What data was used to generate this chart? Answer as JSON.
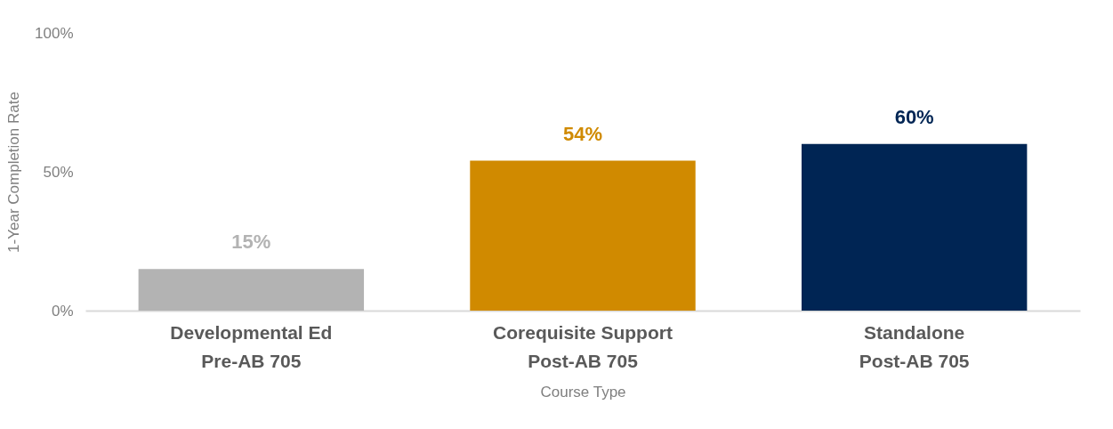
{
  "chart_data": {
    "type": "bar",
    "xlabel": "Course Type",
    "ylabel": "1-Year Completion Rate",
    "categories": [
      "Developmental Ed\nPre-AB 705",
      "Corequisite Support\nPost-AB 705",
      "Standalone\nPost-AB 705"
    ],
    "values": [
      15,
      54,
      60
    ],
    "colors": [
      "#b3b3b3",
      "#d08a00",
      "#002554"
    ],
    "value_labels": [
      "15%",
      "54%",
      "60%"
    ],
    "ylim": [
      0,
      100
    ],
    "yticks": [
      {
        "value": 0,
        "label": "0%"
      },
      {
        "value": 50,
        "label": "50%"
      },
      {
        "value": 100,
        "label": "100%"
      }
    ],
    "grid": false,
    "legend": false
  }
}
